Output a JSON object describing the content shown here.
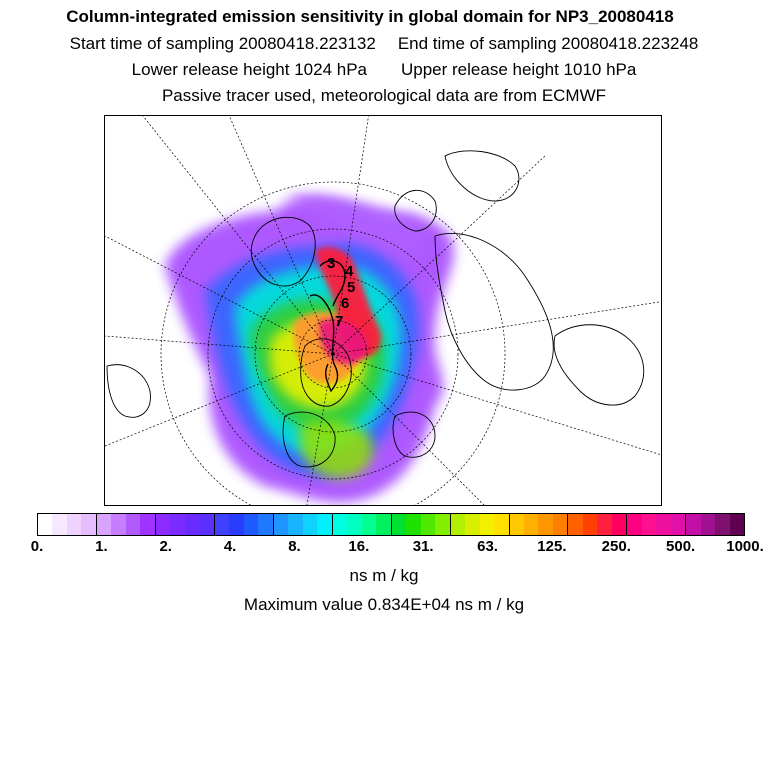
{
  "header": {
    "title": "Column-integrated emission sensitivity in global domain for NP3_20080418",
    "start_time": "Start time of sampling 20080418.223132",
    "end_time": "End time of sampling 20080418.223248",
    "lower_release": "Lower release height 1024 hPa",
    "upper_release": "Upper release height 1010 hPa",
    "tracer_info": "Passive tracer used, meteorological data are from ECMWF"
  },
  "map": {
    "trajectory_labels": [
      "3",
      "4",
      "5",
      "6",
      "7"
    ],
    "colors": {
      "purple": "#9a33ff",
      "blue": "#3366ff",
      "cyan": "#00e5d8",
      "green": "#33cc33",
      "yellow": "#e8f000",
      "orange": "#ff9933",
      "red": "#ff1a3c",
      "magenta": "#e8127f"
    }
  },
  "colorbar": {
    "colors": [
      "#ffffff",
      "#f6e9ff",
      "#eed3ff",
      "#e6bdff",
      "#d9a3ff",
      "#c77dff",
      "#b35aff",
      "#a033ff",
      "#8c2bff",
      "#7a2bff",
      "#6a2bff",
      "#5a30ff",
      "#4040ff",
      "#2a3dff",
      "#1f5aff",
      "#1f78ff",
      "#1f96ff",
      "#19b4ff",
      "#0fd2ff",
      "#00f0ff",
      "#00ffe0",
      "#00ffc0",
      "#00ff90",
      "#00f060",
      "#00e030",
      "#20e000",
      "#50e800",
      "#80f000",
      "#b0f000",
      "#d8f000",
      "#f0f000",
      "#ffe000",
      "#ffc800",
      "#ffb000",
      "#ff9800",
      "#ff8000",
      "#ff6000",
      "#ff4000",
      "#ff2040",
      "#ff0060",
      "#ff0080",
      "#ff1090",
      "#f010a0",
      "#e010a8",
      "#c010a8",
      "#a01090",
      "#801070",
      "#600050"
    ],
    "ticks": [
      "0.",
      "1.",
      "2.",
      "4.",
      "8.",
      "16.",
      "31.",
      "63.",
      "125.",
      "250.",
      "500.",
      "1000."
    ],
    "unit_label": "ns m / kg"
  },
  "max_value": "Maximum value  0.834E+04 ns m / kg"
}
